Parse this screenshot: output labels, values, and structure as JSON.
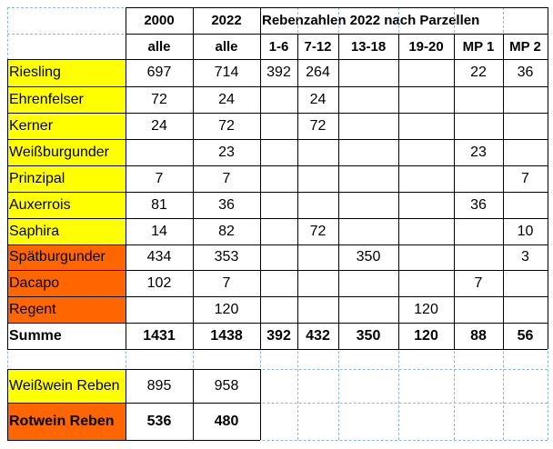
{
  "colors": {
    "white_wine": "#FFFF00",
    "red_wine": "#FF6600",
    "grid_solid": "#000000",
    "grid_dashed": "#8EB4E3"
  },
  "header": {
    "years": [
      "2000",
      "2022"
    ],
    "group_title": "Rebenzahlen 2022 nach Parzellen",
    "alle": [
      "alle",
      "alle"
    ],
    "parcels": [
      "1-6",
      "7-12",
      "13-18",
      "19-20",
      "MP 1",
      "MP 2"
    ]
  },
  "rows": [
    {
      "name": "Riesling",
      "type": "weiss",
      "y2000": "697",
      "y2022": "714",
      "p": [
        "392",
        "264",
        "",
        "",
        "22",
        "36"
      ]
    },
    {
      "name": "Ehrenfelser",
      "type": "weiss",
      "y2000": "72",
      "y2022": "24",
      "p": [
        "",
        "24",
        "",
        "",
        "",
        ""
      ]
    },
    {
      "name": "Kerner",
      "type": "weiss",
      "y2000": "24",
      "y2022": "72",
      "p": [
        "",
        "72",
        "",
        "",
        "",
        ""
      ]
    },
    {
      "name": "Weißburgunder",
      "type": "weiss",
      "y2000": "",
      "y2022": "23",
      "p": [
        "",
        "",
        "",
        "",
        "23",
        ""
      ]
    },
    {
      "name": "Prinzipal",
      "type": "weiss",
      "y2000": "7",
      "y2022": "7",
      "p": [
        "",
        "",
        "",
        "",
        "",
        "7"
      ]
    },
    {
      "name": "Auxerrois",
      "type": "weiss",
      "y2000": "81",
      "y2022": "36",
      "p": [
        "",
        "",
        "",
        "",
        "36",
        ""
      ]
    },
    {
      "name": "Saphira",
      "type": "weiss",
      "y2000": "14",
      "y2022": "82",
      "p": [
        "",
        "72",
        "",
        "",
        "",
        "10"
      ]
    },
    {
      "name": "Spätburgunder",
      "type": "rot",
      "y2000": "434",
      "y2022": "353",
      "p": [
        "",
        "",
        "350",
        "",
        "",
        "3"
      ]
    },
    {
      "name": "Dacapo",
      "type": "rot",
      "y2000": "102",
      "y2022": "7",
      "p": [
        "",
        "",
        "",
        "",
        "7",
        ""
      ]
    },
    {
      "name": "Regent",
      "type": "rot",
      "y2000": "",
      "y2022": "120",
      "p": [
        "",
        "",
        "",
        "120",
        "",
        ""
      ]
    }
  ],
  "summe": {
    "label": "Summe",
    "y2000": "1431",
    "y2022": "1438",
    "p": [
      "392",
      "432",
      "350",
      "120",
      "88",
      "56"
    ]
  },
  "summary": [
    {
      "label": "Weißwein Reben",
      "type": "weiss",
      "y2000": "895",
      "y2022": "958",
      "bold": false
    },
    {
      "label": "Rotwein Reben",
      "type": "rot",
      "y2000": "536",
      "y2022": "480",
      "bold": true
    }
  ]
}
